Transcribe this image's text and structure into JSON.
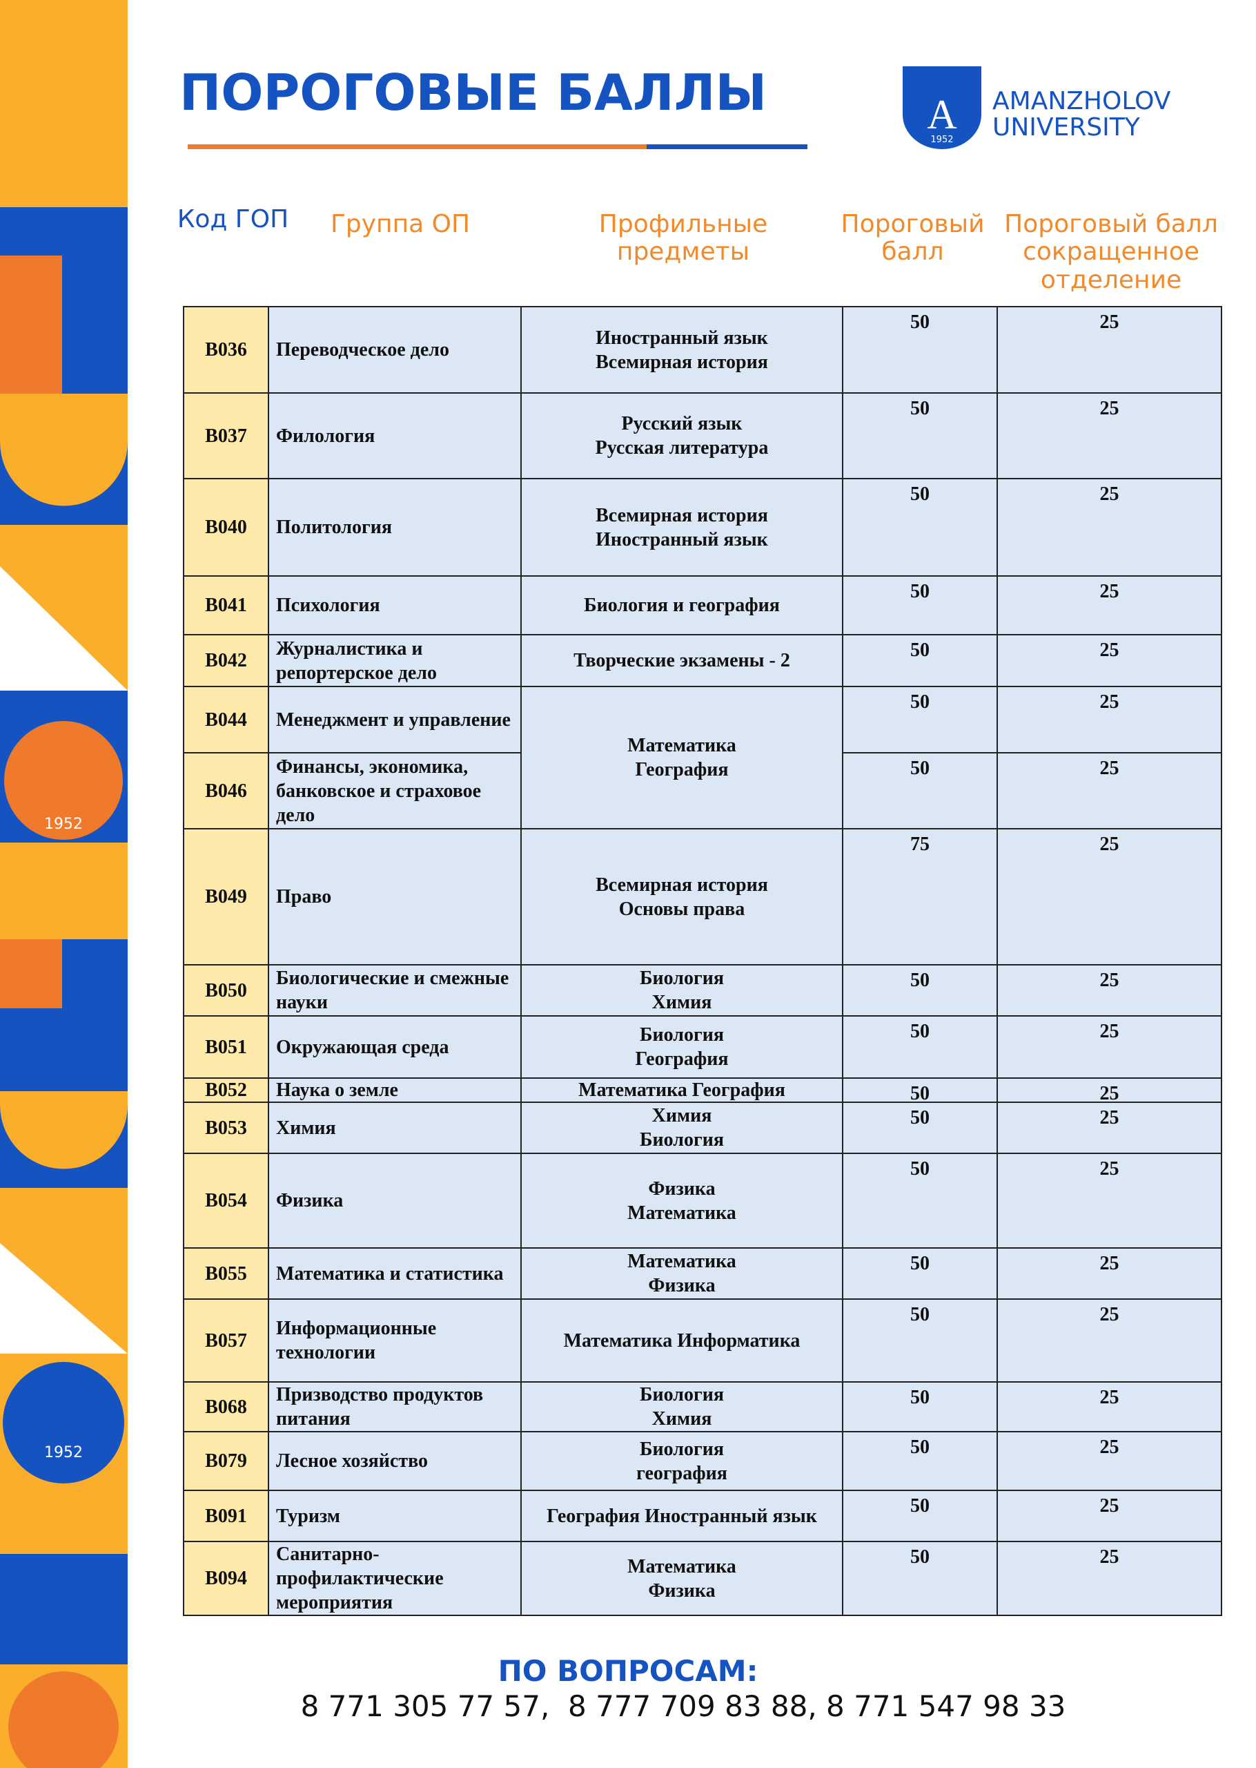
{
  "header": {
    "title": "ПОРОГОВЫЕ БАЛЛЫ",
    "logo": {
      "name": "AMANZHOLOV",
      "subname": "UNIVERSITY",
      "year": "1952"
    }
  },
  "table": {
    "columns": [
      "Код ГОП",
      "Группа ОП",
      "Профильные предметы",
      "Пороговый балл",
      "Пороговый балл сокращенное отделение"
    ],
    "rows": [
      {
        "code": "B036",
        "group": "Переводческое дело",
        "subjects": [
          "Иностранный язык",
          "Всемирная история"
        ],
        "score": 50,
        "reduced": 25
      },
      {
        "code": "B037",
        "group": "Филология",
        "subjects": [
          "Русский язык",
          "Русская литература"
        ],
        "score": 50,
        "reduced": 25
      },
      {
        "code": "B040",
        "group": "Политология",
        "subjects": [
          "Всемирная история",
          "Иностранный язык"
        ],
        "score": 50,
        "reduced": 25
      },
      {
        "code": "B041",
        "group": "Психология",
        "subjects": [
          "Биология и география"
        ],
        "score": 50,
        "reduced": 25
      },
      {
        "code": "B042",
        "group": "Журналистика и репортерское дело",
        "subjects": [
          "Творческие экзамены - 2"
        ],
        "score": 50,
        "reduced": 25
      },
      {
        "code": "B044",
        "group": "Менеджмент и управление",
        "subjects": [
          "Математика",
          "География"
        ],
        "score": 50,
        "reduced": 25
      },
      {
        "code": "B046",
        "group": "Финансы, экономика, банковское и страховое дело",
        "score": 50,
        "reduced": 25
      },
      {
        "code": "B049",
        "group": "Право",
        "subjects": [
          "Всемирная история",
          "Основы права"
        ],
        "score": 75,
        "reduced": 25
      },
      {
        "code": "B050",
        "group": "Биологические и смежные науки",
        "subjects": [
          "Биология",
          "Химия"
        ],
        "score": 50,
        "reduced": 25
      },
      {
        "code": "B051",
        "group": "Окружающая среда",
        "subjects": [
          "Биология",
          "География"
        ],
        "score": 50,
        "reduced": 25
      },
      {
        "code": "B052",
        "group": "Наука о земле",
        "subjects": [
          "Математика География"
        ],
        "score": 50,
        "reduced": 25
      },
      {
        "code": "B053",
        "group": "Химия",
        "subjects": [
          "Химия",
          "Биология"
        ],
        "score": 50,
        "reduced": 25
      },
      {
        "code": "B054",
        "group": "Физика",
        "subjects": [
          "Физика",
          "Математика"
        ],
        "score": 50,
        "reduced": 25
      },
      {
        "code": "B055",
        "group": "Математика и статистика",
        "subjects": [
          "Математика",
          "Физика"
        ],
        "score": 50,
        "reduced": 25
      },
      {
        "code": "B057",
        "group": "Информационные технологии",
        "subjects": [
          "Математика Информатика"
        ],
        "score": 50,
        "reduced": 25
      },
      {
        "code": "B068",
        "group": "Призводство продуктов питания",
        "subjects": [
          "Биология",
          "Химия"
        ],
        "score": 50,
        "reduced": 25
      },
      {
        "code": "B079",
        "group": "Лесное хозяйство",
        "subjects": [
          "Биология",
          "география"
        ],
        "score": 50,
        "reduced": 25
      },
      {
        "code": "B091",
        "group": "Туризм",
        "subjects": [
          "География Иностранный язык"
        ],
        "score": 50,
        "reduced": 25
      },
      {
        "code": "B094",
        "group": "Санитарно-профилактические мероприятия",
        "subjects": [
          "Математика",
          "Физика"
        ],
        "score": 50,
        "reduced": 25
      }
    ]
  },
  "footer": {
    "label": "ПО ВОПРОСАМ:",
    "phones": "8 771 305 77 57,  8 777 709 83 88, 8 771 547 98 33"
  }
}
